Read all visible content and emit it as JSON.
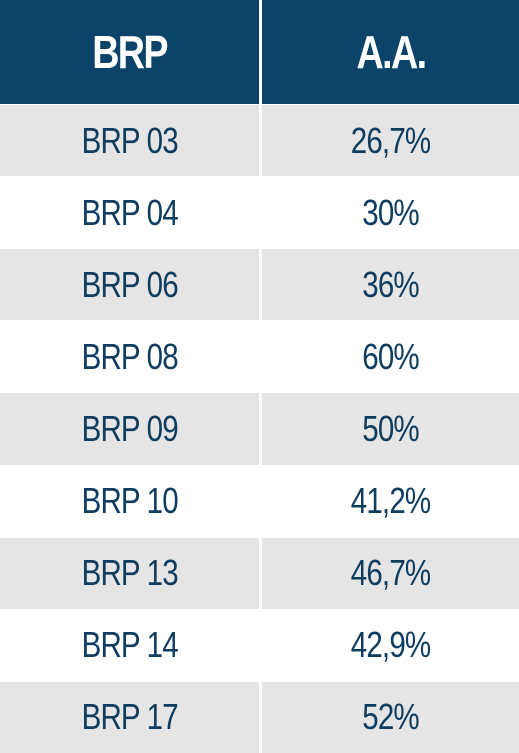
{
  "colors": {
    "header_bg": "#0b4468",
    "header_text": "#ffffff",
    "row_shade": "#e5e5e5",
    "row_plain": "#ffffff",
    "cell_text": "#0e3d60"
  },
  "table": {
    "headers": [
      "BRP",
      "A.A."
    ],
    "rows": [
      [
        "BRP 03",
        "26,7%"
      ],
      [
        "BRP 04",
        "30%"
      ],
      [
        "BRP 06",
        "36%"
      ],
      [
        "BRP 08",
        "60%"
      ],
      [
        "BRP 09",
        "50%"
      ],
      [
        "BRP 10",
        "41,2%"
      ],
      [
        "BRP 13",
        "46,7%"
      ],
      [
        "BRP 14",
        "42,9%"
      ],
      [
        "BRP 17",
        "52%"
      ]
    ]
  }
}
